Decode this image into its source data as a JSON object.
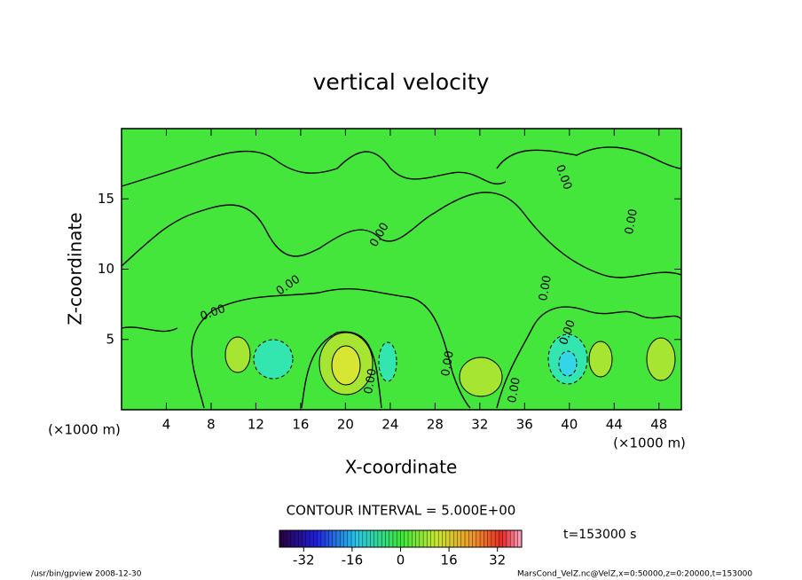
{
  "chart_data": {
    "type": "contour",
    "title": "vertical velocity",
    "x_label": "X-coordinate",
    "y_label": "Z-coordinate",
    "x_unit": "(×1000 m)",
    "xlim": [
      0,
      50
    ],
    "xticks": [
      4,
      8,
      12,
      16,
      20,
      24,
      28,
      32,
      36,
      40,
      44,
      48
    ],
    "ylim": [
      0,
      20
    ],
    "yticks": [
      5,
      10,
      15
    ],
    "contour_label": "0.00",
    "contour_interval": "CONTOUR INTERVAL = 5.000E+00",
    "colorbar": {
      "clim": [
        -40,
        40
      ],
      "ticks": [
        -32,
        -16,
        0,
        16,
        32
      ]
    },
    "time_label": "t=153000 s",
    "footer_left": "/usr/bin/gpview  2008-12-30",
    "footer_right": "MarsCond_VelZ.nc@VelZ,x=0:50000,z=0:20000,t=153000"
  }
}
